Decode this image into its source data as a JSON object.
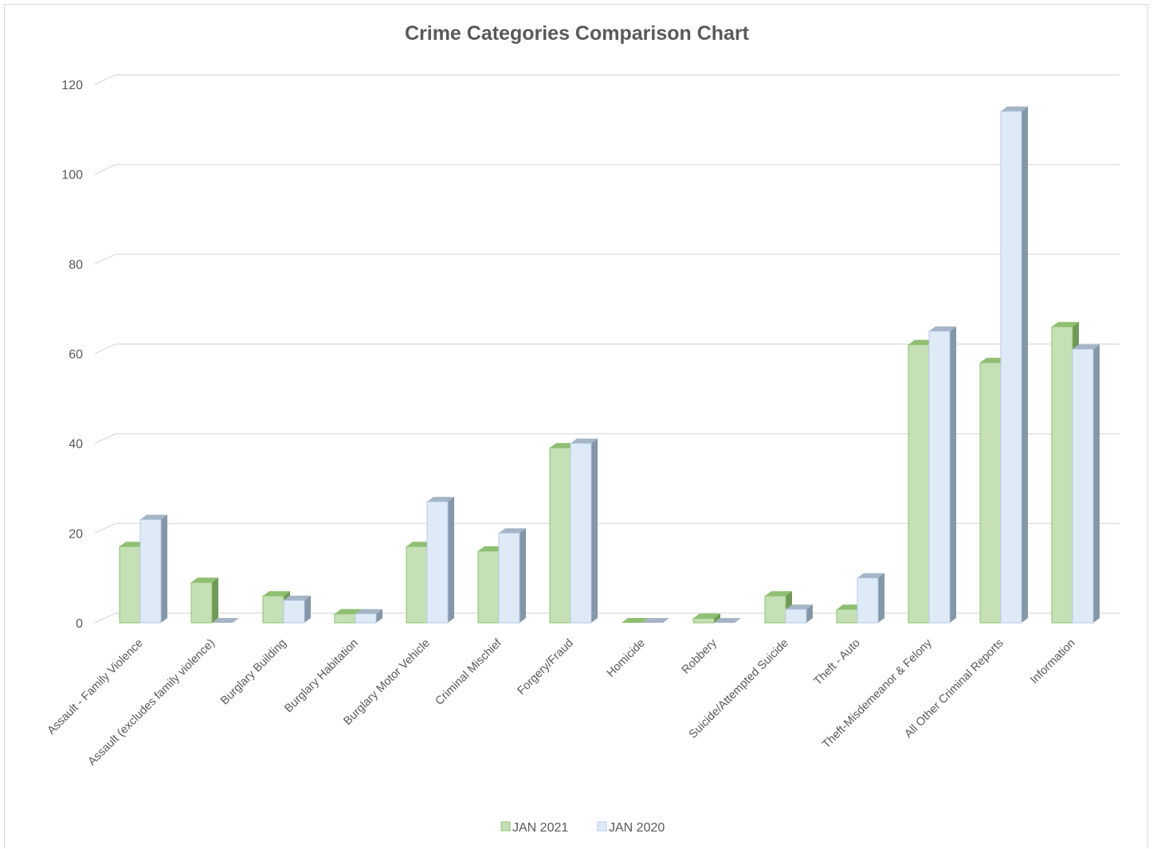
{
  "chart_data": {
    "type": "bar",
    "title": "Crime Categories Comparison Chart",
    "xlabel": "",
    "ylabel": "",
    "ylim": [
      0,
      120
    ],
    "yticks": [
      "0",
      "20",
      "40",
      "60",
      "80",
      "100",
      "120"
    ],
    "grid": true,
    "legend_position": "bottom",
    "categories": [
      "Assault - Family Violence",
      "Assault (excludes family violence)",
      "Burglary Building",
      "Burglary Habitation",
      "Burglary Motor Vehicle",
      "Criminal Mischief",
      "Forgery/Fraud",
      "Homicide",
      "Robbery",
      "Suicide/Attempted Suicide",
      "Theft - Auto",
      "Theft-Misdemeanor &  Felony",
      "All Other Criminal Reports",
      "Information"
    ],
    "series": [
      {
        "name": "JAN 2021",
        "color": "#c5e0b4",
        "edge": "#8fbf72",
        "side": "#6f9a55",
        "top": "#8fbf72",
        "values": [
          17,
          9,
          6,
          2,
          17,
          16,
          39,
          0,
          1,
          6,
          3,
          62,
          58,
          66
        ]
      },
      {
        "name": "JAN 2020",
        "color": "#deebf7",
        "edge": "#b4c7e7",
        "side": "#8497a8",
        "top": "#a5b5c5",
        "values": [
          23,
          0,
          5,
          2,
          27,
          20,
          40,
          0,
          0,
          3,
          10,
          65,
          114,
          61
        ]
      }
    ]
  }
}
